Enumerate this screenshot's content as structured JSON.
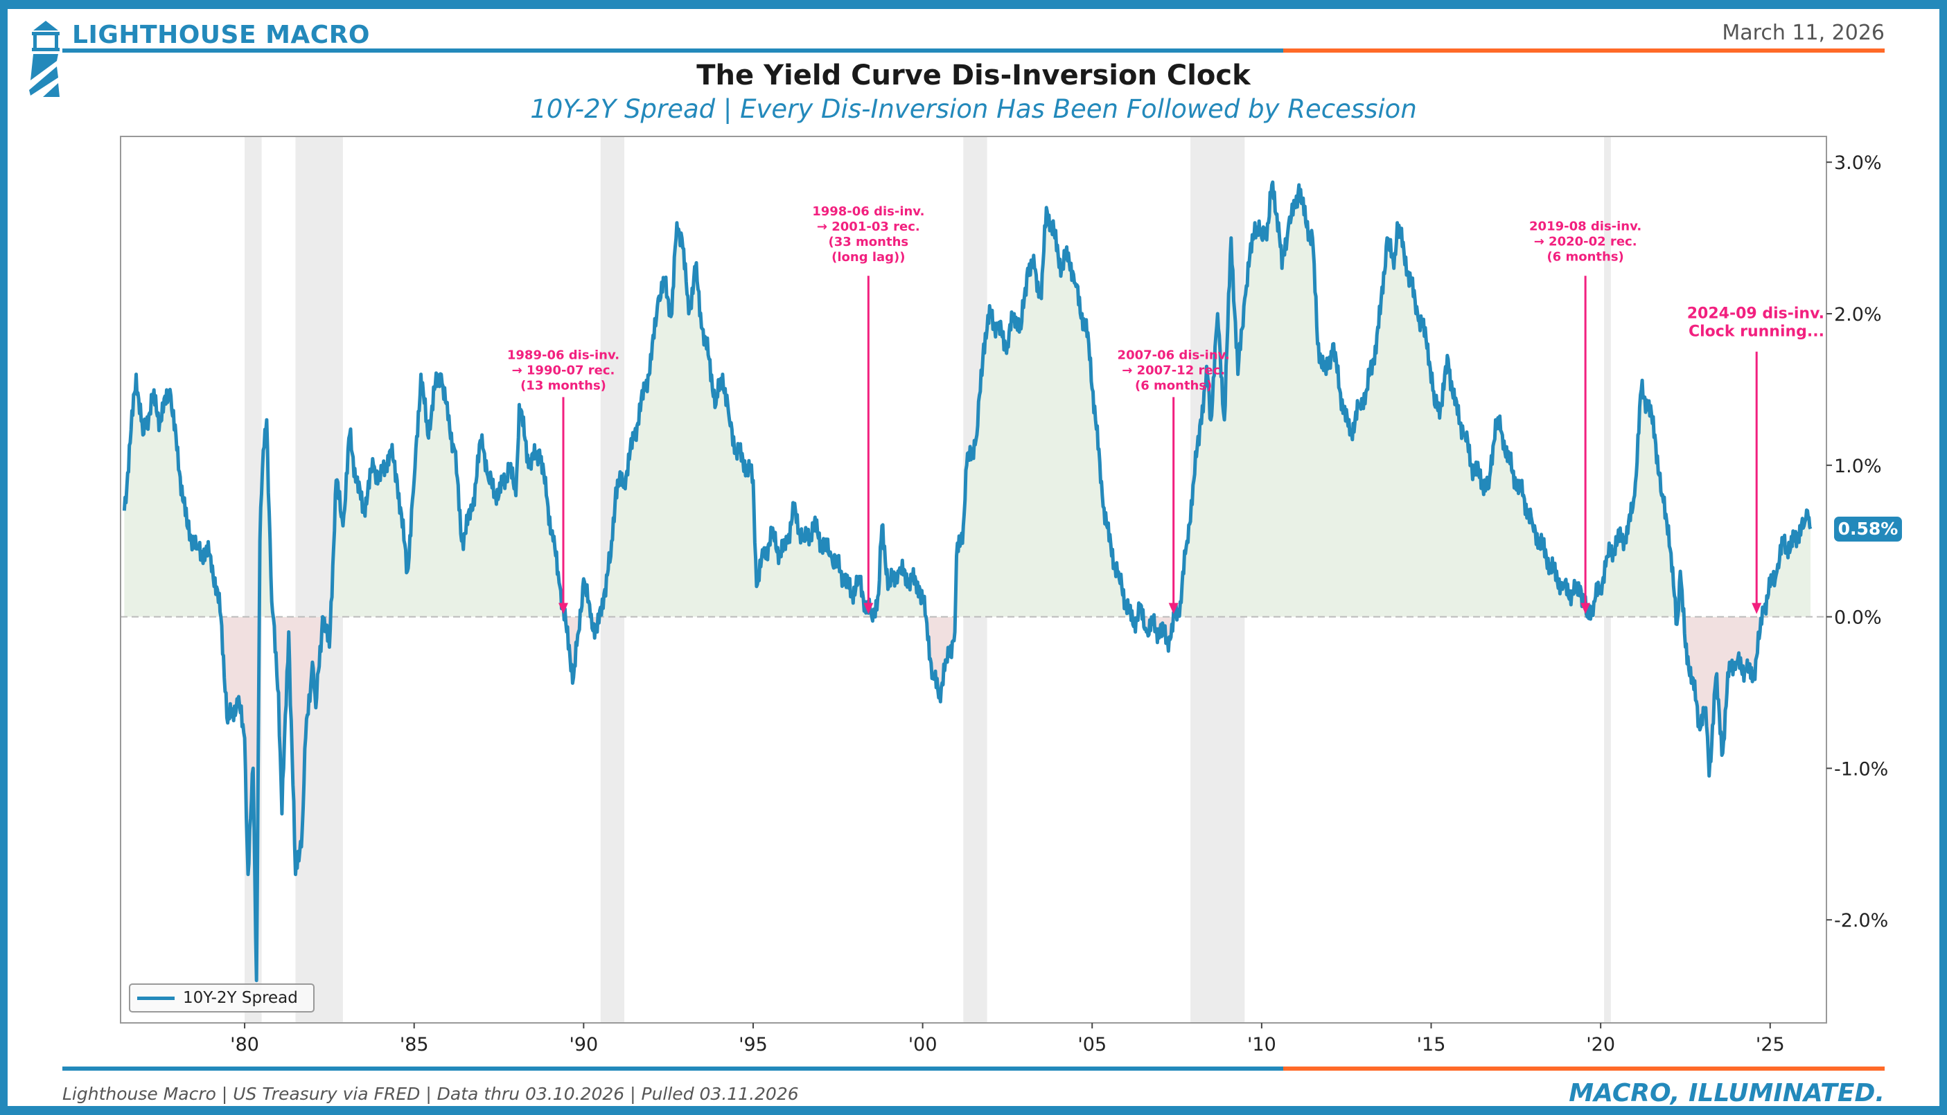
{
  "header": {
    "brand": "LIGHTHOUSE MACRO",
    "date": "March 11, 2026",
    "title": "The Yield Curve Dis-Inversion Clock",
    "subtitle": "10Y-2Y Spread | Every Dis-Inversion Has Been Followed by Recession"
  },
  "footer": {
    "source": "Lighthouse Macro | US Treasury via FRED | Data thru 03.10.2026 | Pulled 03.11.2026",
    "tagline": "MACRO, ILLUMINATED."
  },
  "colors": {
    "line": "#2389bb",
    "accent": "#ff6a28",
    "annotation": "#f2207f",
    "pos_fill": "#e9f1e6",
    "neg_fill": "#f1e0e0",
    "recession": "#e6e6e6"
  },
  "chart_data": {
    "type": "line",
    "title": "The Yield Curve Dis-Inversion Clock",
    "subtitle": "10Y-2Y Spread | Every Dis-Inversion Has Been Followed by Recession",
    "xlabel": "",
    "ylabel": "",
    "xlim": [
      1976.34,
      2026.66
    ],
    "ylim": [
      -2.68,
      3.17
    ],
    "x_ticks": [
      {
        "v": 1980,
        "label": "'80"
      },
      {
        "v": 1985,
        "label": "'85"
      },
      {
        "v": 1990,
        "label": "'90"
      },
      {
        "v": 1995,
        "label": "'95"
      },
      {
        "v": 2000,
        "label": "'00"
      },
      {
        "v": 2005,
        "label": "'05"
      },
      {
        "v": 2010,
        "label": "'10"
      },
      {
        "v": 2015,
        "label": "'15"
      },
      {
        "v": 2020,
        "label": "'20"
      },
      {
        "v": 2025,
        "label": "'25"
      }
    ],
    "y_ticks": [
      {
        "v": 3,
        "label": "3.0%"
      },
      {
        "v": 2,
        "label": "2.0%"
      },
      {
        "v": 1,
        "label": "1.0%"
      },
      {
        "v": 0,
        "label": "0.0%"
      },
      {
        "v": -1,
        "label": "-1.0%"
      },
      {
        "v": -2,
        "label": "-2.0%"
      }
    ],
    "legend": {
      "position": "bottom-left",
      "entries": [
        "10Y-2Y Spread"
      ]
    },
    "last_value_label": "0.58%",
    "recessions": [
      [
        1980.0,
        1980.5
      ],
      [
        1981.5,
        1982.9
      ],
      [
        1990.5,
        1991.2
      ],
      [
        2001.2,
        2001.9
      ],
      [
        2007.9,
        2009.5
      ],
      [
        2020.1,
        2020.3
      ]
    ],
    "series": [
      {
        "name": "10Y-2Y Spread",
        "x": [
          1976.45,
          1976.8,
          1977.0,
          1977.3,
          1977.5,
          1977.8,
          1978.0,
          1978.3,
          1978.6,
          1979.0,
          1979.3,
          1979.5,
          1979.8,
          1980.0,
          1980.1,
          1980.25,
          1980.35,
          1980.45,
          1980.55,
          1980.65,
          1980.8,
          1981.0,
          1981.1,
          1981.3,
          1981.5,
          1981.7,
          1981.8,
          1982.0,
          1982.1,
          1982.3,
          1982.5,
          1982.7,
          1982.9,
          1983.1,
          1983.3,
          1983.5,
          1983.8,
          1984.0,
          1984.3,
          1984.5,
          1984.8,
          1985.0,
          1985.2,
          1985.4,
          1985.6,
          1985.8,
          1986.0,
          1986.2,
          1986.4,
          1986.7,
          1987.0,
          1987.2,
          1987.5,
          1987.8,
          1988.0,
          1988.1,
          1988.4,
          1988.7,
          1988.9,
          1989.1,
          1989.3,
          1989.5,
          1989.7,
          1989.85,
          1990.0,
          1990.2,
          1990.4,
          1990.6,
          1990.8,
          1990.95,
          1991.2,
          1991.5,
          1991.8,
          1992.0,
          1992.2,
          1992.4,
          1992.6,
          1992.75,
          1992.9,
          1993.1,
          1993.3,
          1993.5,
          1993.7,
          1993.9,
          1994.1,
          1994.3,
          1994.5,
          1994.8,
          1995.0,
          1995.1,
          1995.3,
          1995.6,
          1995.8,
          1996.0,
          1996.2,
          1996.5,
          1996.8,
          1997.0,
          1997.3,
          1997.6,
          1997.9,
          1998.1,
          1998.3,
          1998.5,
          1998.7,
          1998.8,
          1999.0,
          1999.3,
          1999.6,
          1999.9,
          2000.1,
          2000.3,
          2000.5,
          2000.7,
          2000.95,
          2001.0,
          2001.2,
          2001.3,
          2001.6,
          2001.8,
          2002.0,
          2002.2,
          2002.5,
          2002.7,
          2002.9,
          2003.1,
          2003.3,
          2003.5,
          2003.65,
          2003.9,
          2004.1,
          2004.3,
          2004.5,
          2004.7,
          2004.9,
          2005.1,
          2005.3,
          2005.5,
          2005.8,
          2006.0,
          2006.2,
          2006.4,
          2006.6,
          2006.8,
          2007.0,
          2007.3,
          2007.45,
          2007.6,
          2007.8,
          2008.0,
          2008.2,
          2008.4,
          2008.5,
          2008.7,
          2008.9,
          2009.1,
          2009.3,
          2009.5,
          2009.8,
          2010.0,
          2010.2,
          2010.3,
          2010.5,
          2010.6,
          2010.8,
          2011.0,
          2011.1,
          2011.3,
          2011.5,
          2011.65,
          2011.9,
          2012.1,
          2012.3,
          2012.6,
          2012.9,
          2013.1,
          2013.3,
          2013.5,
          2013.7,
          2013.9,
          2014.0,
          2014.2,
          2014.4,
          2014.6,
          2014.9,
          2015.1,
          2015.3,
          2015.5,
          2015.7,
          2016.0,
          2016.2,
          2016.5,
          2016.7,
          2016.9,
          2017.1,
          2017.4,
          2017.7,
          2018.0,
          2018.3,
          2018.6,
          2018.9,
          2019.2,
          2019.4,
          2019.6,
          2019.8,
          2020.0,
          2020.2,
          2020.5,
          2020.8,
          2021.0,
          2021.2,
          2021.4,
          2021.6,
          2021.8,
          2022.0,
          2022.1,
          2022.25,
          2022.35,
          2022.5,
          2022.7,
          2022.9,
          2023.1,
          2023.2,
          2023.4,
          2023.6,
          2023.8,
          2024.0,
          2024.3,
          2024.5,
          2024.7,
          2024.8,
          2025.0,
          2025.2,
          2025.4,
          2025.6,
          2025.8,
          2026.0,
          2026.1,
          2026.19
        ],
        "y": [
          0.7,
          1.6,
          1.2,
          1.45,
          1.3,
          1.5,
          1.1,
          0.6,
          0.45,
          0.4,
          0.0,
          -0.7,
          -0.55,
          -0.8,
          -1.7,
          -1.0,
          -2.4,
          0.5,
          1.1,
          1.3,
          0.1,
          -0.5,
          -1.3,
          -0.1,
          -1.7,
          -1.4,
          -0.8,
          -0.3,
          -0.6,
          0.0,
          -0.2,
          0.9,
          0.6,
          1.2,
          0.9,
          0.7,
          1.0,
          0.9,
          1.1,
          0.9,
          0.3,
          0.9,
          1.6,
          1.2,
          1.5,
          1.6,
          1.3,
          1.1,
          0.5,
          0.7,
          1.2,
          0.9,
          0.8,
          1.0,
          0.8,
          1.4,
          1.0,
          1.1,
          0.8,
          0.5,
          0.2,
          -0.1,
          -0.4,
          -0.1,
          0.25,
          0.0,
          -0.1,
          0.15,
          0.4,
          0.85,
          0.9,
          1.2,
          1.5,
          1.7,
          2.1,
          2.2,
          2.0,
          2.6,
          2.5,
          2.0,
          2.3,
          1.9,
          1.7,
          1.4,
          1.6,
          1.3,
          1.1,
          1.0,
          0.9,
          0.2,
          0.4,
          0.55,
          0.4,
          0.5,
          0.7,
          0.5,
          0.6,
          0.5,
          0.4,
          0.3,
          0.15,
          0.25,
          0.1,
          0.0,
          0.15,
          0.6,
          0.2,
          0.3,
          0.25,
          0.2,
          0.0,
          -0.4,
          -0.5,
          -0.3,
          -0.1,
          0.4,
          0.6,
          1.0,
          1.2,
          1.8,
          2.0,
          1.9,
          1.8,
          2.0,
          1.9,
          2.3,
          2.3,
          2.1,
          2.7,
          2.5,
          2.3,
          2.4,
          2.2,
          2.0,
          1.8,
          1.3,
          0.8,
          0.5,
          0.25,
          0.1,
          -0.05,
          0.05,
          -0.1,
          -0.05,
          -0.1,
          -0.15,
          0.0,
          0.1,
          0.5,
          0.9,
          1.3,
          1.6,
          1.3,
          2.0,
          1.3,
          2.5,
          1.6,
          2.1,
          2.6,
          2.5,
          2.6,
          2.85,
          2.6,
          2.3,
          2.6,
          2.7,
          2.85,
          2.6,
          2.5,
          1.8,
          1.6,
          1.8,
          1.5,
          1.2,
          1.4,
          1.5,
          1.7,
          2.0,
          2.5,
          2.3,
          2.6,
          2.4,
          2.2,
          2.0,
          1.8,
          1.4,
          1.4,
          1.7,
          1.4,
          1.2,
          1.0,
          0.9,
          0.85,
          1.3,
          1.2,
          0.95,
          0.8,
          0.6,
          0.45,
          0.3,
          0.2,
          0.15,
          0.2,
          0.0,
          0.1,
          0.2,
          0.4,
          0.5,
          0.55,
          0.8,
          1.5,
          1.4,
          1.2,
          0.8,
          0.6,
          0.3,
          -0.05,
          0.3,
          -0.2,
          -0.4,
          -0.7,
          -0.6,
          -1.05,
          -0.4,
          -0.9,
          -0.3,
          -0.3,
          -0.35,
          -0.4,
          -0.1,
          0.05,
          0.2,
          0.3,
          0.5,
          0.45,
          0.55,
          0.6,
          0.7,
          0.58
        ]
      }
    ],
    "annotations": [
      {
        "x": 1989.4,
        "lines": [
          "1989-06 dis-inv.",
          "→ 1990-07 rec.",
          "(13 months)"
        ],
        "text_level": 1.7,
        "arrow_from": 1.45,
        "align": "center",
        "size": "small"
      },
      {
        "x": 1998.4,
        "lines": [
          "1998-06 dis-inv.",
          "→ 2001-03 rec.",
          "(33 months",
          "(long lag))"
        ],
        "text_level": 2.65,
        "arrow_from": 2.25,
        "align": "center",
        "size": "small"
      },
      {
        "x": 2007.4,
        "lines": [
          "2007-06 dis-inv.",
          "→ 2007-12 rec.",
          "(6 months)"
        ],
        "text_level": 1.7,
        "arrow_from": 1.45,
        "align": "center",
        "size": "small"
      },
      {
        "x": 2019.55,
        "lines": [
          "2019-08 dis-inv.",
          "→ 2020-02 rec.",
          "(6 months)"
        ],
        "text_level": 2.55,
        "arrow_from": 2.25,
        "align": "center",
        "size": "small"
      },
      {
        "x": 2024.6,
        "lines": [
          "2024-09 dis-inv.",
          "Clock running..."
        ],
        "text_level": 1.97,
        "arrow_from": 1.75,
        "align": "right",
        "size": "large"
      }
    ]
  }
}
